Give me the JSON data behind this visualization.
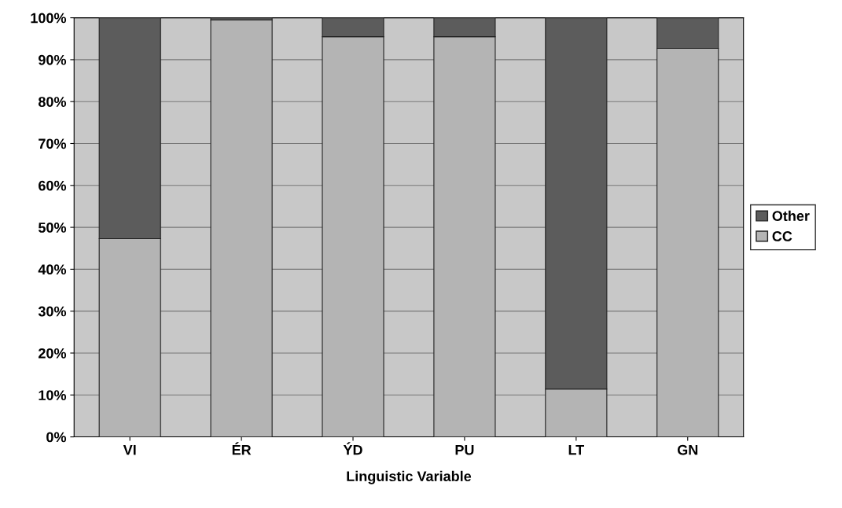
{
  "chart_data": {
    "type": "bar",
    "stacked": true,
    "xlabel": "Linguistic Variable",
    "categories": [
      "VI",
      "ÉR",
      "ÝD",
      "PU",
      "LT",
      "GN"
    ],
    "series": [
      {
        "name": "CC",
        "color": "#b4b4b4",
        "values": [
          47.3,
          99.5,
          95.5,
          95.5,
          11.4,
          92.7
        ]
      },
      {
        "name": "Other",
        "color": "#5c5c5c",
        "values": [
          52.7,
          0.5,
          4.5,
          4.5,
          88.6,
          7.3
        ]
      }
    ],
    "ylim": [
      0,
      100
    ],
    "yticks": [
      {
        "value": 0,
        "label": "0%"
      },
      {
        "value": 10,
        "label": "10%"
      },
      {
        "value": 20,
        "label": "20%"
      },
      {
        "value": 30,
        "label": "30%"
      },
      {
        "value": 40,
        "label": "40%"
      },
      {
        "value": 50,
        "label": "50%"
      },
      {
        "value": 60,
        "label": "60%"
      },
      {
        "value": 70,
        "label": "70%"
      },
      {
        "value": 80,
        "label": "80%"
      },
      {
        "value": 90,
        "label": "90%"
      },
      {
        "value": 100,
        "label": "100%"
      }
    ],
    "grid": "y",
    "legend": "right"
  }
}
